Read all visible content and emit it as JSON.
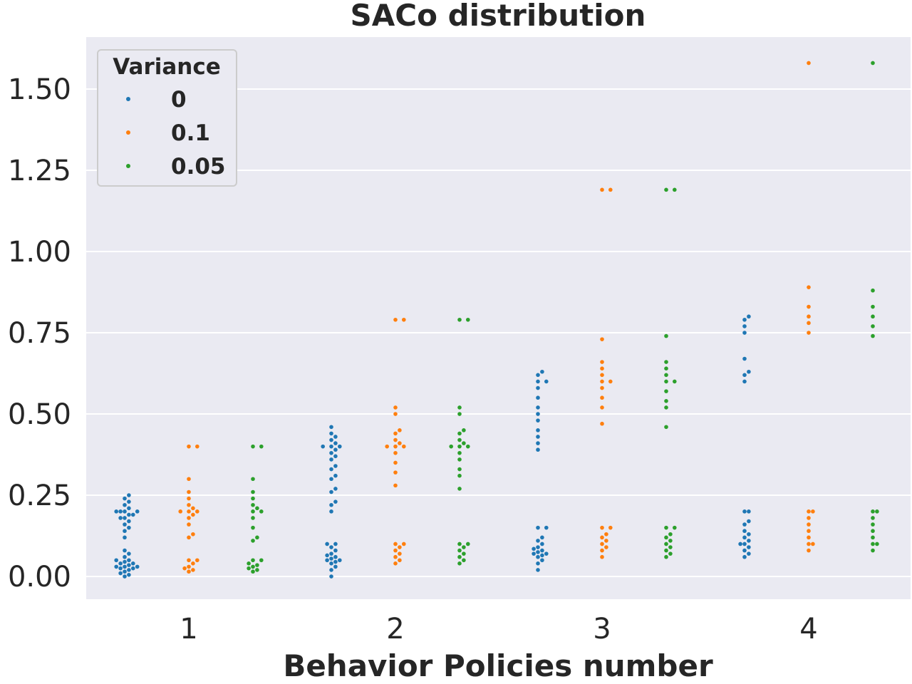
{
  "chart_data": {
    "type": "scatter",
    "subtype": "swarm",
    "title": "SACo distribution",
    "xlabel": "Behavior Policies number",
    "ylabel": "",
    "categories": [
      "1",
      "2",
      "3",
      "4"
    ],
    "ylim": [
      -0.07,
      1.66
    ],
    "yticks": [
      0.0,
      0.25,
      0.5,
      0.75,
      1.0,
      1.25,
      1.5
    ],
    "ytick_labels": [
      "0.00",
      "0.25",
      "0.50",
      "0.75",
      "1.00",
      "1.25",
      "1.50"
    ],
    "grid": true,
    "background": "#eaeaf2",
    "legend": {
      "title": "Variance",
      "position": "top-left"
    },
    "series": [
      {
        "name": "0",
        "color": "#1f77b4",
        "values": [
          [
            0.0,
            0.005,
            0.01,
            0.015,
            0.02,
            0.025,
            0.025,
            0.03,
            0.03,
            0.03,
            0.035,
            0.04,
            0.04,
            0.045,
            0.05,
            0.05,
            0.06,
            0.07,
            0.08,
            0.12,
            0.14,
            0.15,
            0.16,
            0.17,
            0.18,
            0.18,
            0.19,
            0.19,
            0.2,
            0.2,
            0.2,
            0.2,
            0.21,
            0.22,
            0.23,
            0.24,
            0.25
          ],
          [
            0.0,
            0.02,
            0.03,
            0.04,
            0.045,
            0.05,
            0.05,
            0.055,
            0.06,
            0.065,
            0.07,
            0.08,
            0.09,
            0.1,
            0.1,
            0.2,
            0.22,
            0.23,
            0.26,
            0.27,
            0.3,
            0.31,
            0.33,
            0.34,
            0.36,
            0.37,
            0.38,
            0.39,
            0.4,
            0.4,
            0.4,
            0.41,
            0.42,
            0.43,
            0.44,
            0.46
          ],
          [
            0.02,
            0.04,
            0.05,
            0.06,
            0.065,
            0.07,
            0.07,
            0.075,
            0.08,
            0.085,
            0.09,
            0.1,
            0.11,
            0.12,
            0.15,
            0.15,
            0.39,
            0.41,
            0.43,
            0.45,
            0.48,
            0.5,
            0.52,
            0.55,
            0.58,
            0.6,
            0.6,
            0.62,
            0.63
          ],
          [
            0.06,
            0.07,
            0.08,
            0.09,
            0.1,
            0.1,
            0.11,
            0.12,
            0.13,
            0.14,
            0.16,
            0.17,
            0.2,
            0.2,
            0.6,
            0.62,
            0.63,
            0.67,
            0.75,
            0.77,
            0.79,
            0.8
          ]
        ]
      },
      {
        "name": "0.1",
        "color": "#ff7f0e",
        "values": [
          [
            0.015,
            0.02,
            0.025,
            0.03,
            0.04,
            0.05,
            0.05,
            0.12,
            0.13,
            0.16,
            0.18,
            0.19,
            0.2,
            0.2,
            0.2,
            0.21,
            0.22,
            0.24,
            0.26,
            0.3,
            0.4,
            0.4
          ],
          [
            0.04,
            0.05,
            0.06,
            0.07,
            0.08,
            0.09,
            0.1,
            0.1,
            0.28,
            0.32,
            0.35,
            0.38,
            0.4,
            0.4,
            0.4,
            0.41,
            0.42,
            0.44,
            0.45,
            0.5,
            0.52,
            0.79,
            0.79
          ],
          [
            0.06,
            0.08,
            0.09,
            0.1,
            0.11,
            0.12,
            0.13,
            0.15,
            0.15,
            0.47,
            0.52,
            0.55,
            0.58,
            0.6,
            0.6,
            0.62,
            0.64,
            0.66,
            0.73,
            1.19,
            1.19
          ],
          [
            0.08,
            0.1,
            0.1,
            0.12,
            0.14,
            0.16,
            0.18,
            0.2,
            0.2,
            0.75,
            0.78,
            0.8,
            0.83,
            0.89,
            1.58
          ]
        ]
      },
      {
        "name": "0.05",
        "color": "#2ca02c",
        "values": [
          [
            0.015,
            0.02,
            0.025,
            0.03,
            0.035,
            0.04,
            0.05,
            0.05,
            0.11,
            0.12,
            0.15,
            0.18,
            0.2,
            0.2,
            0.21,
            0.22,
            0.24,
            0.26,
            0.3,
            0.4,
            0.4
          ],
          [
            0.04,
            0.05,
            0.06,
            0.07,
            0.08,
            0.09,
            0.1,
            0.1,
            0.27,
            0.31,
            0.33,
            0.36,
            0.38,
            0.4,
            0.4,
            0.4,
            0.41,
            0.42,
            0.44,
            0.45,
            0.5,
            0.52,
            0.79,
            0.79
          ],
          [
            0.06,
            0.07,
            0.08,
            0.09,
            0.1,
            0.11,
            0.12,
            0.13,
            0.15,
            0.15,
            0.46,
            0.52,
            0.54,
            0.57,
            0.6,
            0.6,
            0.62,
            0.64,
            0.66,
            0.74,
            1.19,
            1.19
          ],
          [
            0.08,
            0.1,
            0.1,
            0.12,
            0.14,
            0.16,
            0.18,
            0.2,
            0.2,
            0.74,
            0.77,
            0.8,
            0.83,
            0.88,
            1.58
          ]
        ]
      }
    ]
  }
}
